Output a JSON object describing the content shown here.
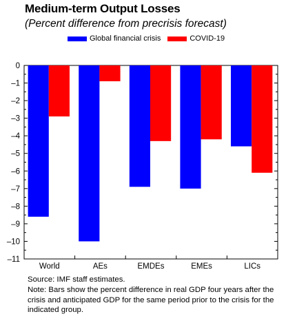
{
  "chart_data": {
    "type": "bar",
    "title": "Medium-term Output Losses",
    "subtitle": "(Percent difference from precrisis forecast)",
    "categories": [
      "World",
      "AEs",
      "EMDEs",
      "EMEs",
      "LICs"
    ],
    "series": [
      {
        "name": "Global financial crisis",
        "color": "#0000ff",
        "values": [
          -8.6,
          -10.0,
          -6.9,
          -7.0,
          -4.6
        ]
      },
      {
        "name": "COVID-19",
        "color": "#ff0000",
        "values": [
          -2.9,
          -0.9,
          -4.3,
          -4.2,
          -6.1
        ]
      }
    ],
    "ylim": [
      -11,
      0
    ],
    "yticks": [
      0,
      -1,
      -2,
      -3,
      -4,
      -5,
      -6,
      -7,
      -8,
      -9,
      -10,
      -11
    ],
    "grid": false,
    "legend_position": "top"
  },
  "notes": {
    "source": "Source: IMF staff estimates.",
    "note": "Note: Bars show the percent difference in real GDP four years after the crisis and anticipated GDP for the same period prior to the crisis for the indicated group."
  }
}
